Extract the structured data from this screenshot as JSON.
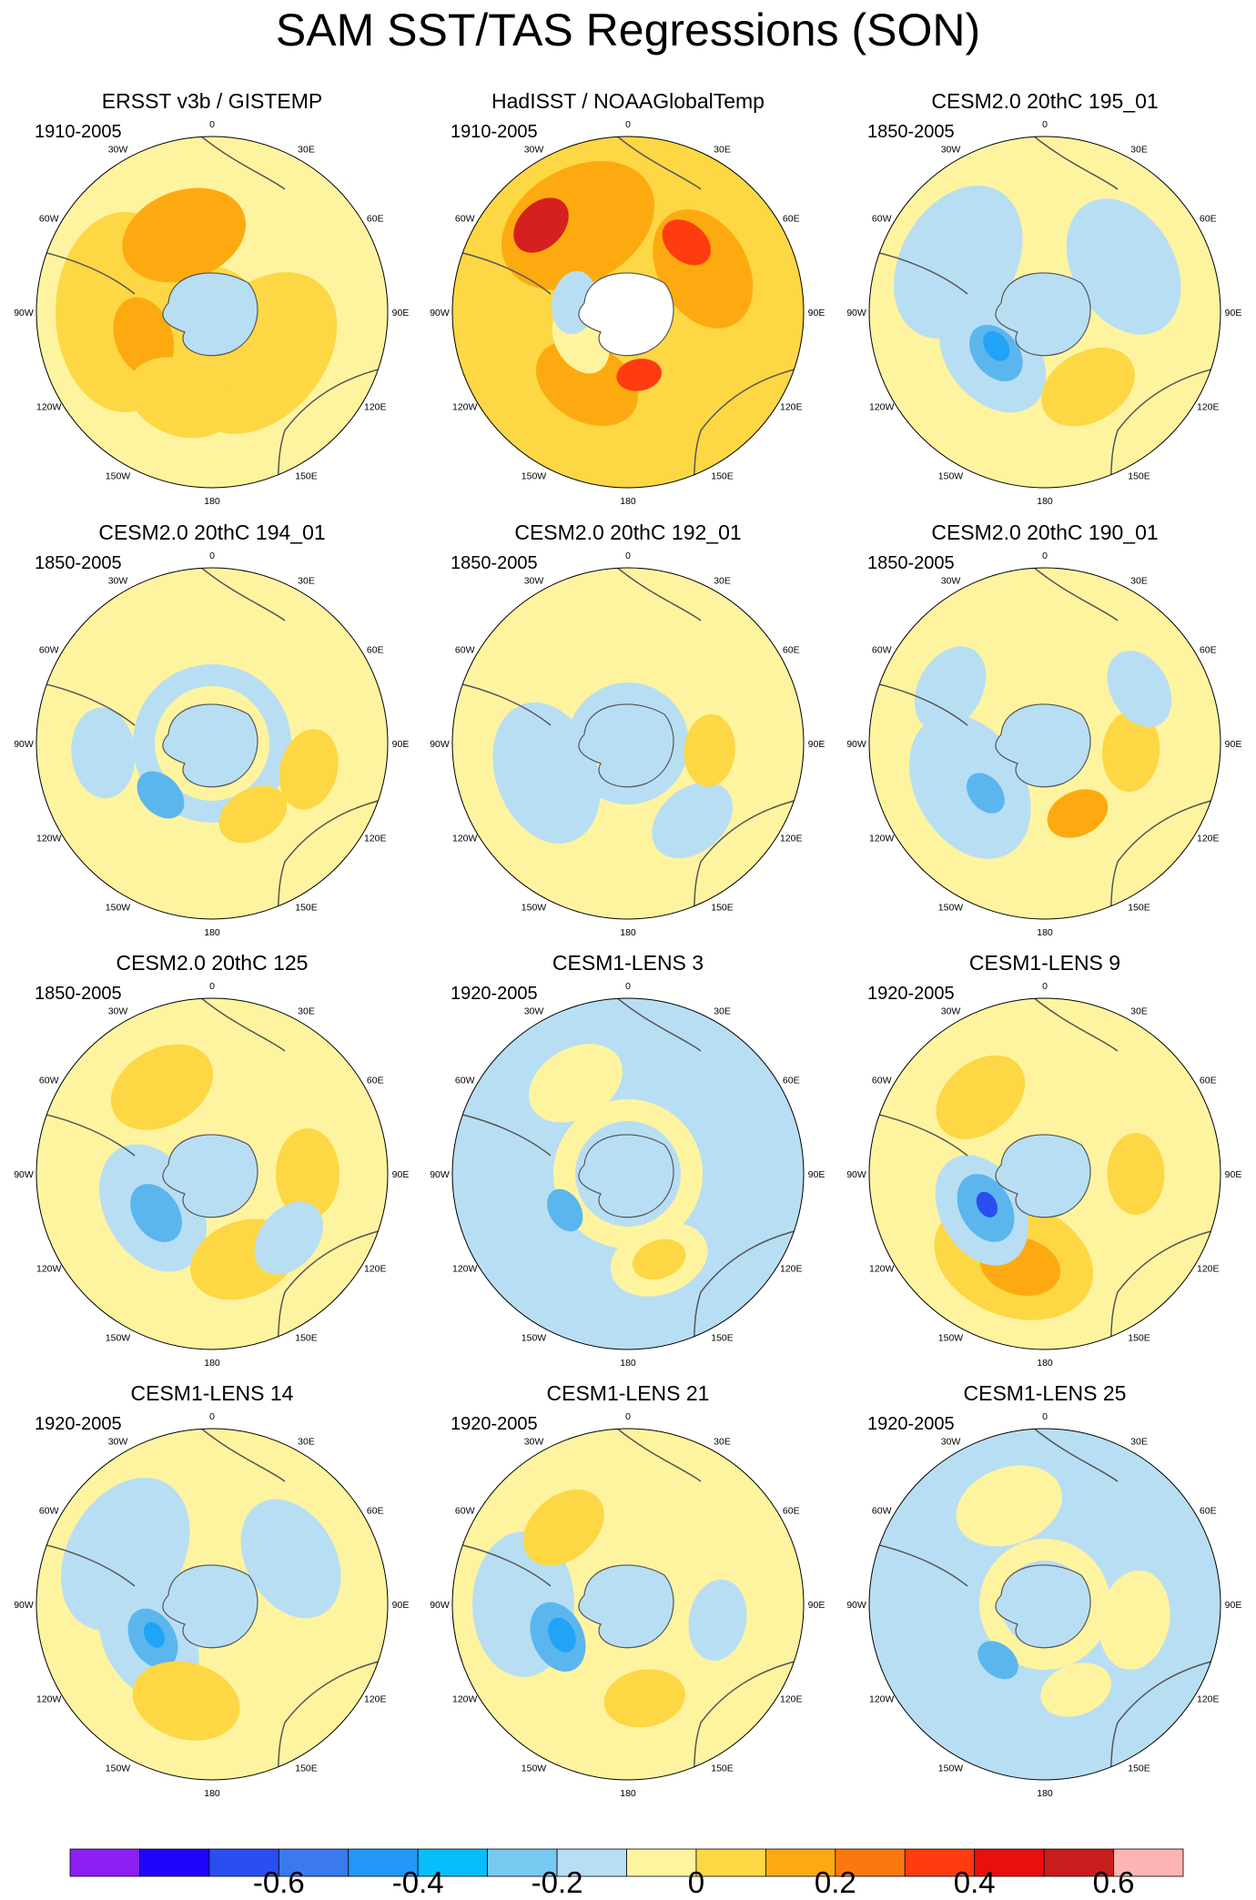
{
  "title": "SAM SST/TAS Regressions (SON)",
  "panels": [
    {
      "title": "ERSST v3b / GISTEMP",
      "period": "1910-2005",
      "fill": "#fef4a0",
      "blobs": [
        [
          "#fdd744",
          0,
          0,
          38,
          "ring"
        ],
        [
          "#fdd744",
          -90,
          95,
          110,
          "e"
        ],
        [
          "#fdd744",
          130,
          70,
          100,
          "e"
        ],
        [
          "#fdaa10",
          -20,
          90,
          70,
          "e"
        ],
        [
          "#fdaa10",
          -110,
          80,
          45,
          "e"
        ],
        [
          "#fdd744",
          -160,
          100,
          60,
          "e"
        ],
        [
          "#b8def3",
          0,
          0,
          35,
          "c"
        ]
      ]
    },
    {
      "title": "HadISST / NOAAGlobalTemp",
      "period": "1910-2005",
      "fill": "#fdd744",
      "blobs": [
        [
          "#fdaa10",
          -30,
          110,
          90,
          "e"
        ],
        [
          "#fdaa10",
          60,
          95,
          70,
          "e"
        ],
        [
          "#fdaa10",
          -150,
          90,
          60,
          "e"
        ],
        [
          "#d61f1f",
          -45,
          135,
          35,
          "e"
        ],
        [
          "#ff3b10",
          170,
          70,
          25,
          "e"
        ],
        [
          "#ff3b10",
          40,
          100,
          30,
          "e"
        ],
        [
          "#fef4a0",
          -120,
          60,
          40,
          "e"
        ],
        [
          "#b8def3",
          -80,
          60,
          35,
          "e"
        ],
        [
          "#ffffff",
          0,
          0,
          32,
          "c"
        ]
      ]
    },
    {
      "title": "CESM2.0 20thC 195_01",
      "period": "1850-2005",
      "fill": "#fef4a0",
      "blobs": [
        [
          "#b8def3",
          -60,
          110,
          90,
          "e"
        ],
        [
          "#b8def3",
          60,
          100,
          80,
          "e"
        ],
        [
          "#b8def3",
          -130,
          75,
          70,
          "e"
        ],
        [
          "#5bb6ee",
          -130,
          70,
          35,
          "e"
        ],
        [
          "#21a4f7",
          -125,
          65,
          18,
          "e"
        ],
        [
          "#fdd744",
          150,
          95,
          55,
          "e"
        ],
        [
          "#b8def3",
          0,
          0,
          36,
          "c"
        ]
      ]
    },
    {
      "title": "CESM2.0 20thC 194_01",
      "period": "1850-2005",
      "fill": "#fef4a0",
      "blobs": [
        [
          "#b8def3",
          0,
          0,
          75,
          "ring"
        ],
        [
          "#b8def3",
          -95,
          120,
          50,
          "e"
        ],
        [
          "#5bb6ee",
          -135,
          80,
          30,
          "e"
        ],
        [
          "#fdd744",
          105,
          110,
          45,
          "e"
        ],
        [
          "#fdd744",
          150,
          90,
          40,
          "e"
        ],
        [
          "#b8def3",
          0,
          0,
          36,
          "c"
        ]
      ]
    },
    {
      "title": "CESM2.0 20thC 192_01",
      "period": "1850-2005",
      "fill": "#fef4a0",
      "blobs": [
        [
          "#b8def3",
          -110,
          95,
          80,
          "e"
        ],
        [
          "#b8def3",
          0,
          0,
          55,
          "ring"
        ],
        [
          "#b8def3",
          140,
          110,
          50,
          "e"
        ],
        [
          "#fdd744",
          95,
          90,
          40,
          "e"
        ],
        [
          "#b8def3",
          0,
          0,
          36,
          "c"
        ]
      ]
    },
    {
      "title": "CESM2.0 20thC 190_01",
      "period": "1850-2005",
      "fill": "#fef4a0",
      "blobs": [
        [
          "#b8def3",
          -120,
          95,
          85,
          "e"
        ],
        [
          "#b8def3",
          -60,
          120,
          50,
          "e"
        ],
        [
          "#5bb6ee",
          -130,
          85,
          25,
          "e"
        ],
        [
          "#fdd744",
          95,
          95,
          45,
          "e"
        ],
        [
          "#fdaa10",
          155,
          85,
          35,
          "e"
        ],
        [
          "#b8def3",
          60,
          120,
          45,
          "e"
        ],
        [
          "#b8def3",
          0,
          0,
          36,
          "c"
        ]
      ]
    },
    {
      "title": "CESM2.0 20thC 125",
      "period": "1850-2005",
      "fill": "#fef4a0",
      "blobs": [
        [
          "#b8def3",
          -120,
          75,
          75,
          "e"
        ],
        [
          "#5bb6ee",
          -125,
          75,
          35,
          "e"
        ],
        [
          "#fdd744",
          -30,
          110,
          60,
          "e"
        ],
        [
          "#fdd744",
          90,
          105,
          50,
          "e"
        ],
        [
          "#fdd744",
          160,
          100,
          60,
          "e"
        ],
        [
          "#b8def3",
          130,
          110,
          45,
          "e"
        ],
        [
          "#b8def3",
          0,
          0,
          36,
          "c"
        ]
      ]
    },
    {
      "title": "CESM1-LENS 3",
      "period": "1920-2005",
      "fill": "#b8def3",
      "blobs": [
        [
          "#fef4a0",
          0,
          0,
          70,
          "ring"
        ],
        [
          "#fef4a0",
          -30,
          115,
          55,
          "e"
        ],
        [
          "#fef4a0",
          160,
          100,
          55,
          "e"
        ],
        [
          "#fdd744",
          160,
          100,
          30,
          "e"
        ],
        [
          "#5bb6ee",
          -120,
          80,
          25,
          "e"
        ],
        [
          "#b8def3",
          0,
          0,
          36,
          "c"
        ]
      ]
    },
    {
      "title": "CESM1-LENS 9",
      "period": "1920-2005",
      "fill": "#fef4a0",
      "blobs": [
        [
          "#fdd744",
          -160,
          100,
          90,
          "e"
        ],
        [
          "#fdaa10",
          -165,
          105,
          45,
          "e"
        ],
        [
          "#b8def3",
          -120,
          80,
          65,
          "e"
        ],
        [
          "#5bb6ee",
          -120,
          75,
          40,
          "e"
        ],
        [
          "#2b4ef0",
          -118,
          72,
          15,
          "e"
        ],
        [
          "#fdd744",
          -40,
          110,
          55,
          "e"
        ],
        [
          "#fdd744",
          90,
          100,
          45,
          "e"
        ],
        [
          "#b8def3",
          0,
          0,
          36,
          "c"
        ]
      ]
    },
    {
      "title": "CESM1-LENS 14",
      "period": "1920-2005",
      "fill": "#fef4a0",
      "blobs": [
        [
          "#b8def3",
          -60,
          110,
          90,
          "e"
        ],
        [
          "#b8def3",
          60,
          100,
          70,
          "e"
        ],
        [
          "#b8def3",
          -120,
          80,
          70,
          "e"
        ],
        [
          "#5bb6ee",
          -120,
          75,
          35,
          "e"
        ],
        [
          "#21a4f7",
          -118,
          72,
          15,
          "e"
        ],
        [
          "#fdd744",
          -165,
          110,
          60,
          "e"
        ],
        [
          "#b8def3",
          0,
          0,
          36,
          "c"
        ]
      ]
    },
    {
      "title": "CESM1-LENS 21",
      "period": "1920-2005",
      "fill": "#fef4a0",
      "blobs": [
        [
          "#b8def3",
          -90,
          115,
          80,
          "e"
        ],
        [
          "#5bb6ee",
          -115,
          85,
          40,
          "e"
        ],
        [
          "#21a4f7",
          -115,
          80,
          20,
          "e"
        ],
        [
          "#fdd744",
          -40,
          110,
          50,
          "e"
        ],
        [
          "#fdd744",
          170,
          105,
          45,
          "e"
        ],
        [
          "#b8def3",
          100,
          100,
          45,
          "e"
        ],
        [
          "#b8def3",
          0,
          0,
          36,
          "c"
        ]
      ]
    },
    {
      "title": "CESM1-LENS 25",
      "period": "1920-2005",
      "fill": "#b8def3",
      "blobs": [
        [
          "#fef4a0",
          -20,
          115,
          60,
          "e"
        ],
        [
          "#fef4a0",
          100,
          100,
          55,
          "e"
        ],
        [
          "#fef4a0",
          0,
          0,
          60,
          "ring"
        ],
        [
          "#fef4a0",
          160,
          100,
          40,
          "e"
        ],
        [
          "#5bb6ee",
          -140,
          80,
          25,
          "e"
        ],
        [
          "#b8def3",
          0,
          0,
          36,
          "c"
        ]
      ]
    }
  ],
  "lon_labels": [
    "0",
    "30E",
    "60E",
    "90E",
    "120E",
    "150E",
    "180",
    "150W",
    "120W",
    "90W",
    "60W",
    "30W"
  ],
  "colorbar": {
    "colors": [
      "#8d1ff5",
      "#1e05fa",
      "#2b4ef0",
      "#3a79ee",
      "#2198f8",
      "#07bdfc",
      "#77c9f2",
      "#b8def3",
      "#fef4a0",
      "#fdd744",
      "#fdaa10",
      "#fb7810",
      "#ff3b10",
      "#ea0e0e",
      "#c91d1d",
      "#fdb4b4"
    ],
    "labels": [
      "-0.6",
      "-0.4",
      "-0.2",
      "0",
      "0.2",
      "0.4",
      "0.6"
    ]
  }
}
